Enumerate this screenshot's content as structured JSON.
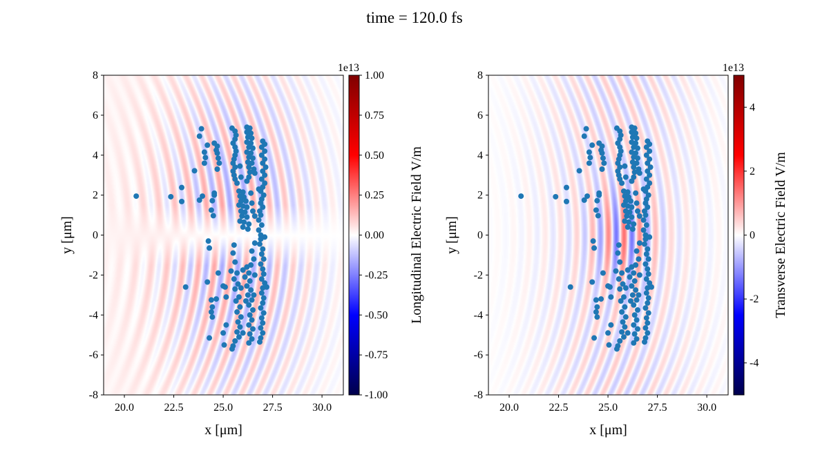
{
  "chart_data": [
    {
      "type": "heatmap+scatter",
      "suptitle": "time = 120.0 fs",
      "xlabel": "x [$\\mu$m]",
      "xlabel_display": "x [μm]",
      "ylabel_display": "y [μm]",
      "xlim": [
        18.95,
        31.08
      ],
      "ylim": [
        -8,
        8
      ],
      "xticks": [
        "20.0",
        "22.5",
        "25.0",
        "27.5",
        "30.0"
      ],
      "yticks": [
        "8",
        "6",
        "4",
        "2",
        "0",
        "-2",
        "-4",
        "-6",
        "-8"
      ],
      "colormap": "seismic",
      "colorbar": {
        "label": "Longitudinal Electric Field V/m",
        "offset": "1e13",
        "vmin": -1.0,
        "vmax": 1.0,
        "ticks": [
          "1.00",
          "0.75",
          "0.50",
          "0.25",
          "0.00",
          "-0.25",
          "-0.50",
          "-0.75",
          "-1.00"
        ]
      },
      "field": "longitudinal",
      "scatter_color": "#1f77b4"
    },
    {
      "type": "heatmap+scatter",
      "xlabel_display": "x [μm]",
      "ylabel_display": "y [μm]",
      "xlim": [
        18.95,
        31.08
      ],
      "ylim": [
        -8,
        8
      ],
      "xticks": [
        "20.0",
        "22.5",
        "25.0",
        "27.5",
        "30.0"
      ],
      "yticks": [
        "8",
        "6",
        "4",
        "2",
        "0",
        "-2",
        "-4",
        "-6",
        "-8"
      ],
      "colormap": "seismic",
      "colorbar": {
        "label": "Transverse Electric Field V/m",
        "offset": "1e13",
        "vmin": -5.0,
        "vmax": 5.0,
        "ticks": [
          "4",
          "2",
          "0",
          "-2",
          "-4"
        ]
      },
      "field": "transverse",
      "scatter_color": "#1f77b4"
    }
  ],
  "particles": [
    [
      20.6,
      1.95
    ],
    [
      22.35,
      1.92
    ],
    [
      22.9,
      2.38
    ],
    [
      22.9,
      1.68
    ],
    [
      23.55,
      3.22
    ],
    [
      23.9,
      5.32
    ],
    [
      23.8,
      4.95
    ],
    [
      24.2,
      4.5
    ],
    [
      24.05,
      4.15
    ],
    [
      24.1,
      3.88
    ],
    [
      24.05,
      3.6
    ],
    [
      23.95,
      1.95
    ],
    [
      23.8,
      1.75
    ],
    [
      24.55,
      2.0
    ],
    [
      24.45,
      1.72
    ],
    [
      24.4,
      1.25
    ],
    [
      24.5,
      0.97
    ],
    [
      24.55,
      2.1
    ],
    [
      24.55,
      4.6
    ],
    [
      24.7,
      4.45
    ],
    [
      24.7,
      4.1
    ],
    [
      24.75,
      3.85
    ],
    [
      24.8,
      3.6
    ],
    [
      24.7,
      3.3
    ],
    [
      24.65,
      4.25
    ],
    [
      24.25,
      -0.3
    ],
    [
      24.3,
      -0.65
    ],
    [
      24.75,
      -1.9
    ],
    [
      24.2,
      -2.35
    ],
    [
      23.1,
      -2.6
    ],
    [
      25.0,
      -2.55
    ],
    [
      25.1,
      -2.6
    ],
    [
      25.15,
      -3.1
    ],
    [
      24.4,
      -3.25
    ],
    [
      24.65,
      -3.2
    ],
    [
      24.45,
      -3.6
    ],
    [
      24.4,
      -3.85
    ],
    [
      24.45,
      -4.1
    ],
    [
      25.15,
      -4.5
    ],
    [
      24.3,
      -5.15
    ],
    [
      25.0,
      -4.9
    ],
    [
      25.05,
      -5.5
    ],
    [
      25.45,
      5.35
    ],
    [
      25.6,
      5.2
    ],
    [
      25.65,
      5.0
    ],
    [
      25.6,
      4.8
    ],
    [
      25.5,
      4.6
    ],
    [
      25.6,
      4.4
    ],
    [
      25.65,
      4.2
    ],
    [
      25.6,
      4.0
    ],
    [
      25.55,
      3.8
    ],
    [
      25.5,
      3.6
    ],
    [
      25.6,
      3.4
    ],
    [
      25.5,
      3.2
    ],
    [
      25.55,
      3.0
    ],
    [
      25.6,
      2.8
    ],
    [
      25.7,
      2.6
    ],
    [
      25.85,
      3.45
    ],
    [
      25.9,
      2.9
    ],
    [
      26.2,
      5.4
    ],
    [
      26.35,
      5.35
    ],
    [
      26.2,
      5.15
    ],
    [
      26.4,
      5.1
    ],
    [
      26.25,
      4.9
    ],
    [
      26.45,
      4.85
    ],
    [
      26.2,
      4.65
    ],
    [
      26.4,
      4.6
    ],
    [
      26.3,
      4.4
    ],
    [
      26.5,
      4.35
    ],
    [
      26.2,
      4.15
    ],
    [
      26.4,
      4.1
    ],
    [
      26.3,
      3.9
    ],
    [
      26.5,
      3.85
    ],
    [
      26.25,
      3.65
    ],
    [
      26.45,
      3.6
    ],
    [
      26.3,
      3.4
    ],
    [
      26.55,
      3.3
    ],
    [
      26.35,
      3.15
    ],
    [
      26.3,
      2.9
    ],
    [
      26.2,
      2.7
    ],
    [
      26.6,
      3.1
    ],
    [
      26.8,
      2.3
    ],
    [
      25.8,
      2.2
    ],
    [
      26.0,
      2.15
    ],
    [
      25.85,
      1.95
    ],
    [
      26.05,
      1.9
    ],
    [
      25.9,
      1.7
    ],
    [
      26.15,
      1.7
    ],
    [
      25.8,
      1.5
    ],
    [
      26.0,
      1.45
    ],
    [
      26.2,
      1.4
    ],
    [
      25.9,
      1.2
    ],
    [
      26.1,
      1.15
    ],
    [
      25.95,
      0.95
    ],
    [
      26.2,
      0.9
    ],
    [
      25.85,
      0.7
    ],
    [
      26.05,
      0.65
    ],
    [
      26.3,
      0.55
    ],
    [
      26.0,
      0.4
    ],
    [
      26.25,
      0.3
    ],
    [
      26.5,
      1.2
    ],
    [
      26.45,
      1.6
    ],
    [
      26.6,
      0.95
    ],
    [
      26.4,
      2.1
    ],
    [
      27.0,
      4.7
    ],
    [
      27.1,
      4.55
    ],
    [
      26.95,
      4.4
    ],
    [
      27.1,
      4.2
    ],
    [
      26.95,
      4.0
    ],
    [
      27.1,
      3.8
    ],
    [
      27.0,
      3.6
    ],
    [
      27.15,
      3.4
    ],
    [
      27.0,
      3.2
    ],
    [
      27.1,
      3.0
    ],
    [
      26.95,
      2.8
    ],
    [
      27.1,
      2.6
    ],
    [
      27.0,
      2.4
    ],
    [
      26.9,
      2.2
    ],
    [
      27.05,
      2.0
    ],
    [
      26.95,
      1.8
    ],
    [
      26.9,
      1.6
    ],
    [
      27.0,
      1.4
    ],
    [
      26.85,
      1.2
    ],
    [
      26.9,
      1.0
    ],
    [
      26.8,
      0.75
    ],
    [
      26.95,
      0.5
    ],
    [
      26.8,
      0.25
    ],
    [
      26.9,
      0.0
    ],
    [
      26.9,
      -0.2
    ],
    [
      26.85,
      -0.45
    ],
    [
      27.0,
      -0.7
    ],
    [
      26.95,
      -0.95
    ],
    [
      27.05,
      -1.2
    ],
    [
      26.9,
      -1.45
    ],
    [
      27.0,
      -1.7
    ],
    [
      27.05,
      -1.95
    ],
    [
      26.95,
      -2.2
    ],
    [
      27.1,
      -2.4
    ],
    [
      27.0,
      -2.65
    ],
    [
      26.95,
      -2.9
    ],
    [
      27.05,
      -3.15
    ],
    [
      27.0,
      -3.4
    ],
    [
      26.9,
      -3.65
    ],
    [
      27.05,
      -3.9
    ],
    [
      26.95,
      -4.15
    ],
    [
      27.0,
      -4.4
    ],
    [
      26.9,
      -4.65
    ],
    [
      27.0,
      -4.9
    ],
    [
      26.9,
      -5.15
    ],
    [
      26.85,
      -5.35
    ],
    [
      27.2,
      -2.6
    ],
    [
      27.1,
      -0.1
    ],
    [
      26.6,
      -0.4
    ],
    [
      26.45,
      -0.8
    ],
    [
      26.55,
      -1.2
    ],
    [
      26.4,
      -1.5
    ],
    [
      26.2,
      -1.6
    ],
    [
      26.0,
      -1.75
    ],
    [
      26.3,
      -1.9
    ],
    [
      26.1,
      -2.1
    ],
    [
      26.35,
      -2.3
    ],
    [
      26.2,
      -2.55
    ],
    [
      26.4,
      -2.75
    ],
    [
      26.25,
      -3.0
    ],
    [
      26.45,
      -3.25
    ],
    [
      26.3,
      -3.5
    ],
    [
      26.5,
      -3.75
    ],
    [
      26.35,
      -4.0
    ],
    [
      26.45,
      -4.25
    ],
    [
      26.3,
      -4.5
    ],
    [
      26.5,
      -4.7
    ],
    [
      26.35,
      -4.95
    ],
    [
      26.45,
      -5.2
    ],
    [
      26.3,
      -5.4
    ],
    [
      26.6,
      -2.0
    ],
    [
      26.55,
      -3.0
    ],
    [
      26.15,
      -3.3
    ],
    [
      25.55,
      -0.5
    ],
    [
      25.5,
      -0.9
    ],
    [
      25.6,
      -1.35
    ],
    [
      25.4,
      -1.8
    ],
    [
      25.7,
      -1.9
    ],
    [
      25.55,
      -2.2
    ],
    [
      25.75,
      -2.45
    ],
    [
      25.6,
      -2.7
    ],
    [
      25.9,
      -2.65
    ],
    [
      25.8,
      -3.1
    ],
    [
      25.65,
      -3.3
    ],
    [
      25.85,
      -3.6
    ],
    [
      25.7,
      -3.85
    ],
    [
      25.9,
      -4.1
    ],
    [
      25.75,
      -4.35
    ],
    [
      25.85,
      -4.6
    ],
    [
      25.7,
      -4.85
    ],
    [
      25.8,
      -5.1
    ],
    [
      25.6,
      -5.3
    ],
    [
      25.5,
      -5.55
    ],
    [
      25.45,
      -5.7
    ],
    [
      26.0,
      -4.9
    ]
  ]
}
